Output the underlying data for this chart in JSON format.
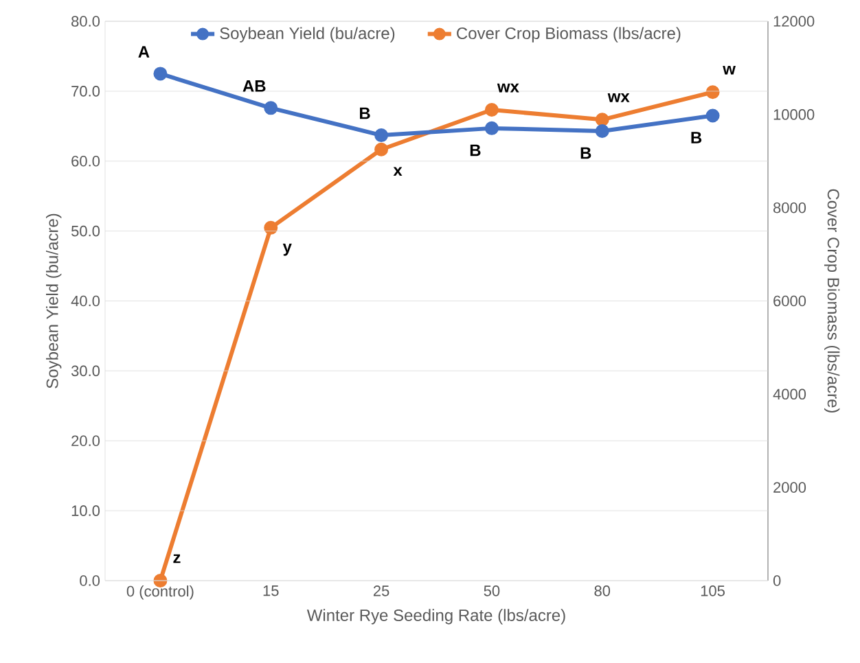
{
  "chart_data": {
    "type": "line",
    "xlabel": "Winter Rye Seeding Rate (lbs/acre)",
    "ylabel": "Soybean Yield (bu/acre)",
    "y2label": "Cover Crop Biomass (lbs/acre)",
    "categories": [
      "0 (control)",
      "15",
      "25",
      "50",
      "80",
      "105"
    ],
    "series": [
      {
        "name": "Soybean Yield (bu/acre)",
        "color": "#4472c4",
        "values": [
          72.5,
          67.6,
          63.7,
          64.7,
          64.3,
          66.5
        ]
      },
      {
        "name": "Cover Crop Biomass (lbs/acre)",
        "color": "#ed7d31",
        "axis": "y2",
        "values": [
          0,
          7570,
          9250,
          10100,
          9890,
          10480
        ]
      }
    ],
    "ylim": [
      0,
      80
    ],
    "yticks": [
      {
        "value": 0,
        "label": "0.0"
      },
      {
        "value": 10,
        "label": "10.0"
      },
      {
        "value": 20,
        "label": "20.0"
      },
      {
        "value": 30,
        "label": "30.0"
      },
      {
        "value": 40,
        "label": "40.0"
      },
      {
        "value": 50,
        "label": "50.0"
      },
      {
        "value": 60,
        "label": "60.0"
      },
      {
        "value": 70,
        "label": "70.0"
      },
      {
        "value": 80,
        "label": "80.0"
      }
    ],
    "y2lim": [
      0,
      12000
    ],
    "y2ticks": [
      0,
      2000,
      4000,
      6000,
      8000,
      10000,
      12000
    ],
    "grid": "y",
    "legend": "top",
    "marker": "circle",
    "line_style": "solid",
    "annotations": [
      "A",
      "AB",
      "B",
      "B",
      "B",
      "B",
      "z",
      "y",
      "x",
      "wx",
      "wx",
      "w"
    ]
  }
}
